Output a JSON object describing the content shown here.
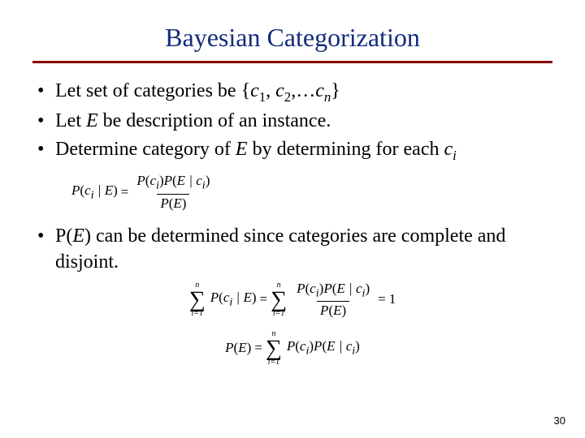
{
  "title": "Bayesian Categorization",
  "colors": {
    "title": "#142c7c",
    "rule": "#8b0000",
    "text": "#000000",
    "background": "#ffffff"
  },
  "bullets": {
    "b1_pre": "Let set of categories be {",
    "b1_c": "c",
    "b1_sep1": ", ",
    "b1_sep2": ",…",
    "b1_post": "}",
    "sub1": "1",
    "sub2": "2",
    "subn": "n",
    "subi": "i",
    "b2_pre": "Let ",
    "b2_E": "E",
    "b2_post": " be description of an instance.",
    "b3_pre": "Determine category of ",
    "b3_post": " by determining for each ",
    "b4_pre": "P(",
    "b4_post": ") can be determined since categories are complete and disjoint."
  },
  "formula": {
    "P": "P",
    "lp": "(",
    "rp": ")",
    "bar": " | ",
    "eq": " = ",
    "one": "1",
    "E": "E",
    "c": "c",
    "i": "i",
    "n": "n",
    "i1": "i=1"
  },
  "page_number": "30"
}
